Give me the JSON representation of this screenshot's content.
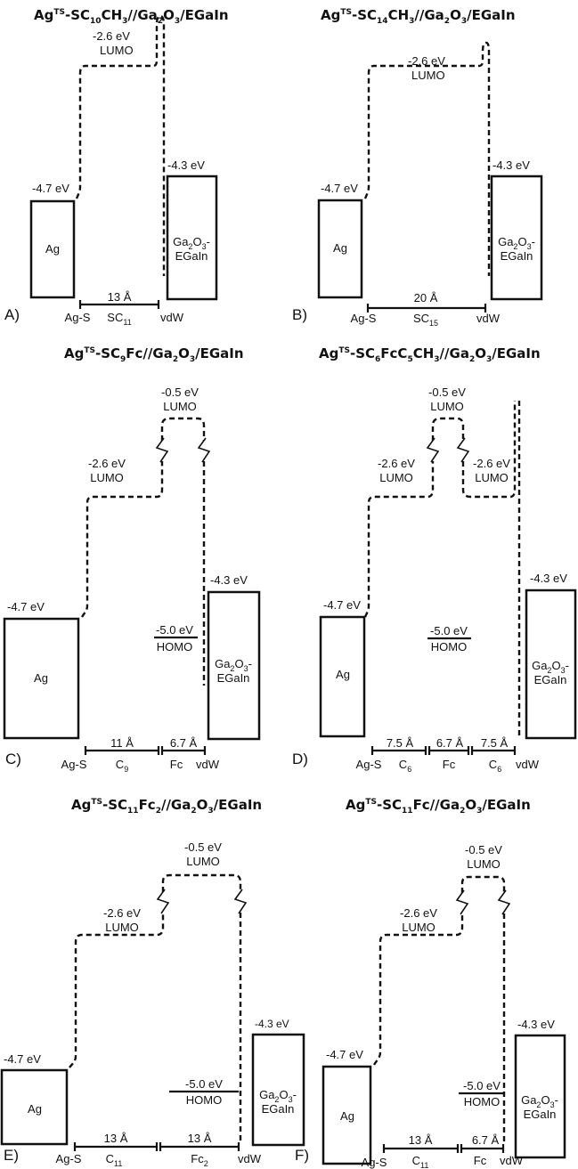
{
  "panels": {
    "a": {
      "tag": "A)",
      "title": {
        "main": "Ag",
        "sup": "TS",
        "p1": "-SC",
        "s1": "10",
        "p2": "CH",
        "s2": "3",
        "p3": "//Ga",
        "s3": "2",
        "p4": "O",
        "s4": "3",
        "p5": "/EGaIn"
      },
      "lumo": [
        "-2.6 eV",
        "LUMO"
      ],
      "ag_energy": "-4.7 eV",
      "ga_energy": "-4.3 eV",
      "ag_label": "Ag",
      "ga_label": [
        "Ga",
        "2",
        "O",
        "3",
        "-",
        "EGaIn"
      ],
      "dist": [
        "13 Å"
      ],
      "bottom": {
        "ags": "Ag-S",
        "vdw": "vdW",
        "seg1": "SC",
        "seg1_sub": "11"
      }
    },
    "b": {
      "tag": "B)",
      "title": {
        "main": "Ag",
        "sup": "TS",
        "p1": "-SC",
        "s1": "14",
        "p2": "CH",
        "s2": "3",
        "p3": "//Ga",
        "s3": "2",
        "p4": "O",
        "s4": "3",
        "p5": "/EGaIn"
      },
      "lumo": [
        "-2.6 eV",
        "LUMO"
      ],
      "ag_energy": "-4.7 eV",
      "ga_energy": "-4.3 eV",
      "ag_label": "Ag",
      "ga_label": [
        "Ga",
        "2",
        "O",
        "3",
        "-",
        "EGaIn"
      ],
      "dist": [
        "20 Å"
      ],
      "bottom": {
        "ags": "Ag-S",
        "vdw": "vdW",
        "seg1": "SC",
        "seg1_sub": "15"
      }
    },
    "c": {
      "tag": "C)",
      "title": {
        "main": "Ag",
        "sup": "TS",
        "p1": "-SC",
        "s1": "9",
        "p2": "Fc//Ga",
        "s2": "2",
        "p3": "O",
        "s3": "3",
        "p4": "/EGaIn",
        "s4": "",
        "p5": ""
      },
      "lumo": [
        "-2.6 eV",
        "LUMO"
      ],
      "lumo2": [
        "-0.5 eV",
        "LUMO"
      ],
      "homo": [
        "-5.0 eV",
        "HOMO"
      ],
      "ag_energy": "-4.7 eV",
      "ga_energy": "-4.3 eV",
      "ag_label": "Ag",
      "ga_label": [
        "Ga",
        "2",
        "O",
        "3",
        "-",
        "EGaIn"
      ],
      "dist": [
        "11 Å",
        "6.7 Å"
      ],
      "bottom": {
        "ags": "Ag-S",
        "vdw": "vdW",
        "seg1": "C",
        "seg1_sub": "9",
        "seg2": "Fc"
      }
    },
    "d": {
      "tag": "D)",
      "title": {
        "main": "Ag",
        "sup": "TS",
        "p1": "-SC",
        "s1": "6",
        "p2": "FcC",
        "s2": "5",
        "p3": "CH",
        "s3": "3",
        "p4": "//Ga",
        "s4": "2",
        "p5": "O",
        "s5": "3",
        "p6": "/EGaIn"
      },
      "lumo": [
        "-2.6 eV",
        "LUMO"
      ],
      "lumo2": [
        "-0.5 eV",
        "LUMO"
      ],
      "lumo3": [
        "-2.6 eV",
        "LUMO"
      ],
      "homo": [
        "-5.0 eV",
        "HOMO"
      ],
      "ag_energy": "-4.7 eV",
      "ga_energy": "-4.3 eV",
      "ag_label": "Ag",
      "ga_label": [
        "Ga",
        "2",
        "O",
        "3",
        "-",
        "EGaIn"
      ],
      "dist": [
        "7.5 Å",
        "6.7 Å",
        "7.5 Å"
      ],
      "bottom": {
        "ags": "Ag-S",
        "vdw": "vdW",
        "seg1": "C",
        "seg1_sub": "6",
        "seg2": "Fc",
        "seg3": "C",
        "seg3_sub": "6"
      }
    },
    "e": {
      "tag": "E)",
      "title": {
        "main": "Ag",
        "sup": "TS",
        "p1": "-SC",
        "s1": "11",
        "p2": "Fc",
        "s2": "2",
        "p3": "//Ga",
        "s3": "2",
        "p4": "O",
        "s4": "3",
        "p5": "/EGaIn"
      },
      "lumo": [
        "-2.6 eV",
        "LUMO"
      ],
      "lumo2": [
        "-0.5 eV",
        "LUMO"
      ],
      "homo": [
        "-5.0 eV",
        "HOMO"
      ],
      "ag_energy": "-4.7 eV",
      "ga_energy": "-4.3 eV",
      "ag_label": "Ag",
      "ga_label": [
        "Ga",
        "2",
        "O",
        "3",
        "-",
        "EGaIn"
      ],
      "dist": [
        "13 Å",
        "13 Å"
      ],
      "bottom": {
        "ags": "Ag-S",
        "vdw": "vdW",
        "seg1": "C",
        "seg1_sub": "11",
        "seg2": "Fc",
        "seg2_sub": "2"
      }
    },
    "f": {
      "tag": "F)",
      "title": {
        "main": "Ag",
        "sup": "TS",
        "p1": "-SC",
        "s1": "11",
        "p2": "Fc//Ga",
        "s2": "2",
        "p3": "O",
        "s3": "3",
        "p4": "/EGaIn",
        "s4": "",
        "p5": ""
      },
      "lumo": [
        "-2.6 eV",
        "LUMO"
      ],
      "lumo2": [
        "-0.5 eV",
        "LUMO"
      ],
      "homo": [
        "-5.0 eV",
        "HOMO"
      ],
      "ag_energy": "-4.7 eV",
      "ga_energy": "-4.3 eV",
      "ag_label": "Ag",
      "ga_label": [
        "Ga",
        "2",
        "O",
        "3",
        "-",
        "EGaIn"
      ],
      "dist": [
        "13 Å",
        "6.7 Å"
      ],
      "bottom": {
        "ags": "Ag-S",
        "vdw": "vdW",
        "seg1": "C",
        "seg1_sub": "11",
        "seg2": "Fc"
      }
    }
  }
}
